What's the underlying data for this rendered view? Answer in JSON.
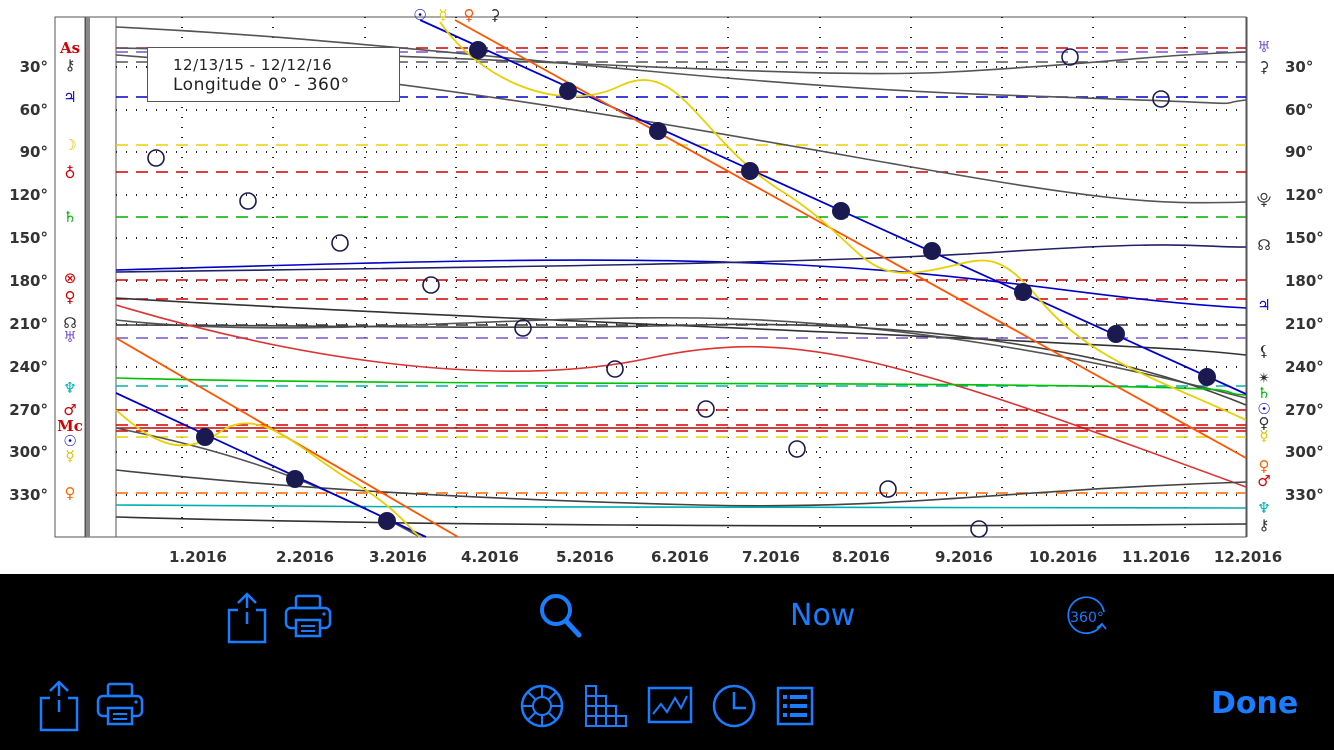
{
  "info": {
    "date_range": "12/13/15 - 12/12/16",
    "longitude": "Longitude  0° - 360°"
  },
  "y_axis_labels": [
    "30°",
    "60°",
    "90°",
    "120°",
    "150°",
    "180°",
    "210°",
    "240°",
    "270°",
    "300°",
    "330°"
  ],
  "x_axis_labels": [
    "1.2016",
    "2.2016",
    "3.2016",
    "4.2016",
    "5.2016",
    "6.2016",
    "7.2016",
    "8.2016",
    "9.2016",
    "10.2016",
    "11.2016",
    "12.2016"
  ],
  "top_glyphs": [
    "☉",
    "☿",
    "♀",
    "⚳"
  ],
  "left_glyphs": [
    {
      "g": "As",
      "c": "#d00000"
    },
    {
      "g": "⚷",
      "c": "#333"
    },
    {
      "g": "♃",
      "c": "#0000cc"
    },
    {
      "g": "☽",
      "c": "#e0c000"
    },
    {
      "g": "♁",
      "c": "#d00000"
    },
    {
      "g": "♄",
      "c": "#00b000"
    },
    {
      "g": "⊗",
      "c": "#d00000"
    },
    {
      "g": "♀",
      "c": "#d00000"
    },
    {
      "g": "☊",
      "c": "#333"
    },
    {
      "g": "♅",
      "c": "#7755cc"
    },
    {
      "g": "♆",
      "c": "#00b0b0"
    },
    {
      "g": "♂",
      "c": "#d00000"
    },
    {
      "g": "Mc",
      "c": "#d00000"
    },
    {
      "g": "☉",
      "c": "#0000cc"
    },
    {
      "g": "☿",
      "c": "#e0c000"
    },
    {
      "g": "♀",
      "c": "#ff6600"
    }
  ],
  "right_glyphs": [
    {
      "g": "♅",
      "c": "#7755cc"
    },
    {
      "g": "⚳",
      "c": "#333"
    },
    {
      "g": "⯓",
      "c": "#333"
    },
    {
      "g": "☊",
      "c": "#333"
    },
    {
      "g": "♃",
      "c": "#0000cc"
    },
    {
      "g": "⚸",
      "c": "#333"
    },
    {
      "g": "✴",
      "c": "#333"
    },
    {
      "g": "♄",
      "c": "#00b000"
    },
    {
      "g": "☉",
      "c": "#0000cc"
    },
    {
      "g": "♀",
      "c": "#333"
    },
    {
      "g": "☿",
      "c": "#e0c000"
    },
    {
      "g": "♀",
      "c": "#ff6600"
    },
    {
      "g": "♂",
      "c": "#d00000"
    },
    {
      "g": "♆",
      "c": "#00b0b0"
    },
    {
      "g": "⚷",
      "c": "#333"
    }
  ],
  "toolbar_top": {
    "share_icon": "share-icon",
    "print_icon": "printer-icon",
    "search_icon": "search-icon",
    "now_label": "Now",
    "degrees_icon_text": "360°"
  },
  "toolbar_bottom": {
    "share_icon": "share-icon",
    "print_icon": "printer-icon",
    "wheel_icon": "chart-wheel-icon",
    "grid_icon": "aspect-grid-icon",
    "graph_icon": "graph-icon",
    "clock_icon": "clock-icon",
    "list_icon": "list-icon",
    "done_label": "Done"
  },
  "colors": {
    "accent": "#1a7cff",
    "sun": "#0000cc",
    "mercury": "#e8d000",
    "venus": "#ff6600",
    "mars": "#d00000",
    "saturn": "#00b000",
    "neptune": "#00b0b0",
    "uranus": "#7755cc",
    "grey": "#555555"
  }
}
